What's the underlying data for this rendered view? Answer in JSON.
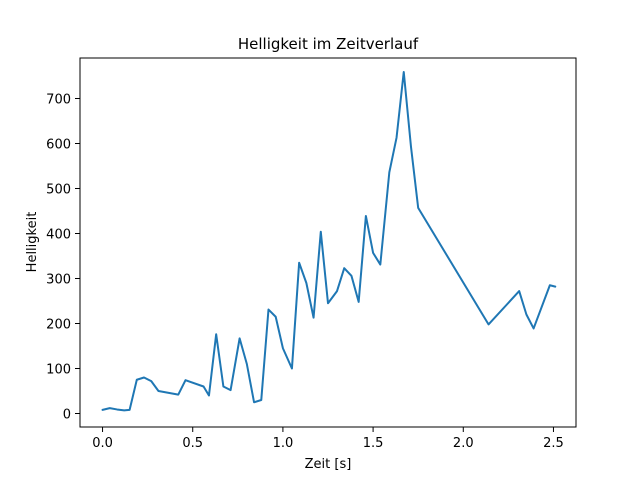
{
  "chart_data": {
    "type": "line",
    "title": "Helligkeit im Zeitverlauf",
    "xlabel": "Zeit [s]",
    "ylabel": "Helligkeit",
    "xlim": [
      -0.125,
      2.625
    ],
    "ylim": [
      -30,
      790
    ],
    "xticks": [
      0.0,
      0.5,
      1.0,
      1.5,
      2.0,
      2.5
    ],
    "xtick_labels": [
      "0.0",
      "0.5",
      "1.0",
      "1.5",
      "2.0",
      "2.5"
    ],
    "yticks": [
      0,
      100,
      200,
      300,
      400,
      500,
      600,
      700
    ],
    "ytick_labels": [
      "0",
      "100",
      "200",
      "300",
      "400",
      "500",
      "600",
      "700"
    ],
    "grid": false,
    "color": "#1f77b4",
    "series": [
      {
        "x": [
          0.0,
          0.04,
          0.08,
          0.12,
          0.15,
          0.19,
          0.23,
          0.27,
          0.31,
          0.42,
          0.46,
          0.56,
          0.59,
          0.63,
          0.67,
          0.71,
          0.76,
          0.8,
          0.84,
          0.88,
          0.92,
          0.96,
          1.0,
          1.05,
          1.09,
          1.13,
          1.17,
          1.21,
          1.25,
          1.3,
          1.34,
          1.38,
          1.42,
          1.46,
          1.5,
          1.54,
          1.59,
          1.63,
          1.67,
          1.71,
          1.75,
          2.14,
          2.31,
          2.35,
          2.39,
          2.48,
          2.51
        ],
        "y": [
          8,
          12,
          9,
          7,
          8,
          75,
          80,
          72,
          50,
          42,
          74,
          60,
          40,
          176,
          60,
          52,
          167,
          110,
          25,
          30,
          231,
          215,
          145,
          100,
          335,
          290,
          213,
          404,
          245,
          272,
          323,
          306,
          248,
          439,
          357,
          331,
          536,
          613,
          759,
          593,
          457,
          198,
          272,
          220,
          189,
          285,
          282
        ]
      }
    ]
  }
}
